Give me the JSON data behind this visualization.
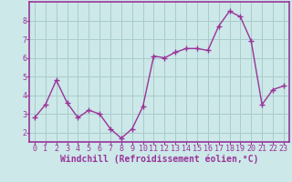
{
  "x": [
    0,
    1,
    2,
    3,
    4,
    5,
    6,
    7,
    8,
    9,
    10,
    11,
    12,
    13,
    14,
    15,
    16,
    17,
    18,
    19,
    20,
    21,
    22,
    23
  ],
  "y": [
    2.8,
    3.5,
    4.8,
    3.6,
    2.8,
    3.2,
    3.0,
    2.2,
    1.7,
    2.2,
    3.4,
    6.1,
    6.0,
    6.3,
    6.5,
    6.5,
    6.4,
    7.7,
    8.5,
    8.2,
    6.9,
    3.5,
    4.3,
    4.5
  ],
  "line_color": "#993399",
  "marker": "+",
  "marker_size": 4,
  "marker_color": "#993399",
  "bg_color": "#cce8e8",
  "grid_color": "#aacccc",
  "xlabel": "Windchill (Refroidissement éolien,°C)",
  "xlabel_fontsize": 7,
  "xlim": [
    -0.5,
    23.5
  ],
  "ylim": [
    1.5,
    9.0
  ],
  "yticks": [
    2,
    3,
    4,
    5,
    6,
    7,
    8
  ],
  "xticks": [
    0,
    1,
    2,
    3,
    4,
    5,
    6,
    7,
    8,
    9,
    10,
    11,
    12,
    13,
    14,
    15,
    16,
    17,
    18,
    19,
    20,
    21,
    22,
    23
  ],
  "tick_fontsize": 6,
  "border_color": "#993399",
  "line_width": 1.0
}
